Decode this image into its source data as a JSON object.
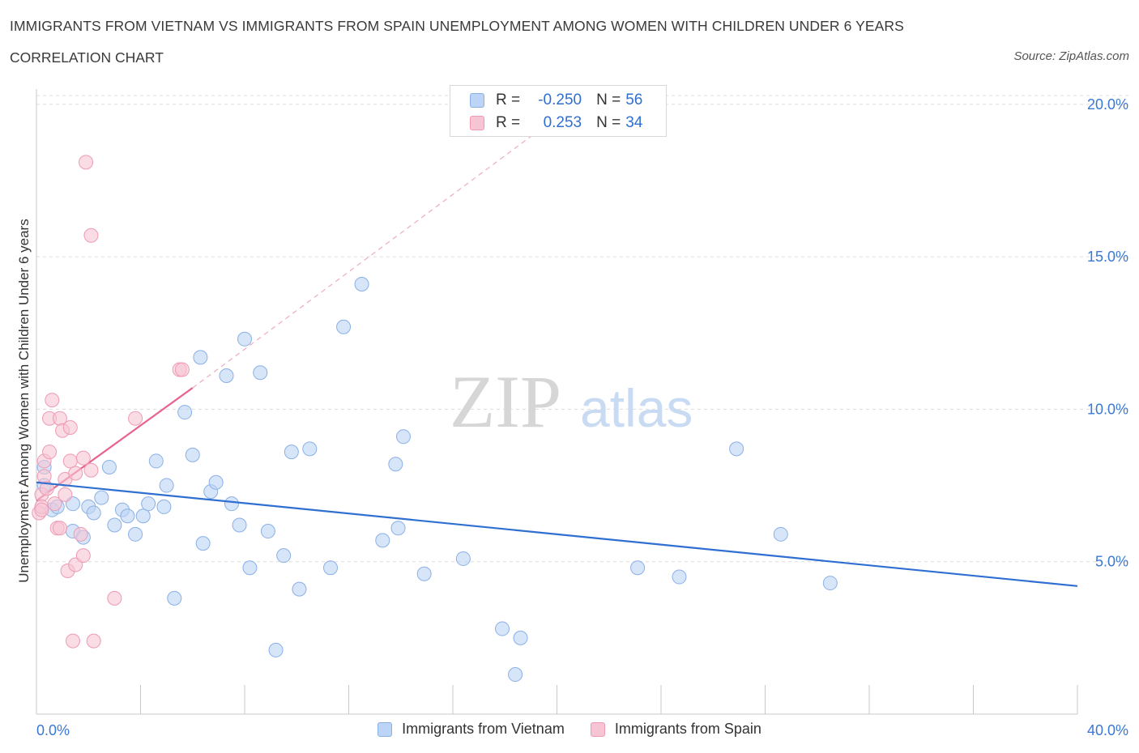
{
  "header": {
    "title": "IMMIGRANTS FROM VIETNAM VS IMMIGRANTS FROM SPAIN UNEMPLOYMENT AMONG WOMEN WITH CHILDREN UNDER 6 YEARS",
    "subtitle": "CORRELATION CHART",
    "source": "Source: ZipAtlas.com"
  },
  "watermark": {
    "zip": "ZIP",
    "atlas": "atlas"
  },
  "legend_top": {
    "rows": [
      {
        "r_label": "R =",
        "r_value": "-0.250",
        "n_label": "N =",
        "n_value": "56"
      },
      {
        "r_label": "R =",
        "r_value": "0.253",
        "n_label": "N =",
        "n_value": "34"
      }
    ]
  },
  "bottom_legend": {
    "vietnam": "Immigrants from Vietnam",
    "spain": "Immigrants from Spain"
  },
  "colors": {
    "vietnam_fill": "#bcd4f5",
    "vietnam_stroke": "#8ab0e6",
    "vietnam_line": "#2f6fd1",
    "spain_fill": "#f7c4d3",
    "spain_stroke": "#ee9ab5",
    "spain_line": "#e8638e",
    "axis_text": "#3a78d4",
    "grid": "#dcdcdc"
  },
  "chart_data": {
    "type": "scatter",
    "title": "IMMIGRANTS FROM VIETNAM VS IMMIGRANTS FROM SPAIN UNEMPLOYMENT AMONG WOMEN WITH CHILDREN UNDER 6 YEARS",
    "xlabel": "",
    "ylabel": "Unemployment Among Women with Children Under 6 years",
    "xlim": [
      0,
      40
    ],
    "ylim": [
      0,
      20.5
    ],
    "x_tick_labels": [
      "0.0%",
      "40.0%"
    ],
    "y_ticks": [
      5,
      10,
      15,
      20
    ],
    "y_tick_labels": [
      "5.0%",
      "10.0%",
      "15.0%",
      "20.0%"
    ],
    "series": [
      {
        "name": "Immigrants from Vietnam",
        "R": -0.25,
        "N": 56,
        "trend": {
          "x0": 0,
          "y0": 7.6,
          "x1": 40,
          "y1": 4.2
        },
        "points": [
          [
            0.3,
            8.1
          ],
          [
            0.3,
            7.5
          ],
          [
            0.6,
            6.7
          ],
          [
            0.8,
            6.8
          ],
          [
            1.4,
            6.0
          ],
          [
            1.8,
            5.8
          ],
          [
            1.4,
            6.9
          ],
          [
            2.0,
            6.8
          ],
          [
            2.2,
            6.6
          ],
          [
            2.5,
            7.1
          ],
          [
            2.8,
            8.1
          ],
          [
            3.0,
            6.2
          ],
          [
            3.3,
            6.7
          ],
          [
            3.5,
            6.5
          ],
          [
            3.8,
            5.9
          ],
          [
            4.1,
            6.5
          ],
          [
            4.3,
            6.9
          ],
          [
            4.6,
            8.3
          ],
          [
            4.9,
            6.8
          ],
          [
            5.0,
            7.5
          ],
          [
            5.3,
            3.8
          ],
          [
            5.7,
            9.9
          ],
          [
            6.0,
            8.5
          ],
          [
            6.3,
            11.7
          ],
          [
            6.4,
            5.6
          ],
          [
            6.7,
            7.3
          ],
          [
            6.9,
            7.6
          ],
          [
            7.3,
            11.1
          ],
          [
            7.5,
            6.9
          ],
          [
            7.8,
            6.2
          ],
          [
            8.0,
            12.3
          ],
          [
            8.2,
            4.8
          ],
          [
            8.6,
            11.2
          ],
          [
            8.9,
            6.0
          ],
          [
            9.2,
            2.1
          ],
          [
            9.5,
            5.2
          ],
          [
            9.8,
            8.6
          ],
          [
            10.1,
            4.1
          ],
          [
            10.5,
            8.7
          ],
          [
            11.3,
            4.8
          ],
          [
            11.8,
            12.7
          ],
          [
            12.5,
            14.1
          ],
          [
            13.3,
            5.7
          ],
          [
            13.8,
            8.2
          ],
          [
            13.9,
            6.1
          ],
          [
            14.1,
            9.1
          ],
          [
            14.9,
            4.6
          ],
          [
            16.4,
            5.1
          ],
          [
            17.9,
            2.8
          ],
          [
            18.6,
            2.5
          ],
          [
            18.4,
            1.3
          ],
          [
            23.1,
            4.8
          ],
          [
            24.7,
            4.5
          ],
          [
            26.9,
            8.7
          ],
          [
            28.6,
            5.9
          ],
          [
            30.5,
            4.3
          ]
        ]
      },
      {
        "name": "Immigrants from Spain",
        "R": 0.253,
        "N": 34,
        "trend": {
          "x0": 0,
          "y0": 7.0,
          "x1": 6.0,
          "y1": 10.7,
          "extend_to": [
            20.5,
            19.9
          ]
        },
        "points": [
          [
            0.1,
            6.6
          ],
          [
            0.2,
            7.2
          ],
          [
            0.2,
            6.8
          ],
          [
            0.3,
            8.3
          ],
          [
            0.3,
            7.8
          ],
          [
            0.4,
            7.4
          ],
          [
            0.5,
            8.6
          ],
          [
            0.5,
            9.7
          ],
          [
            0.6,
            10.3
          ],
          [
            0.8,
            6.1
          ],
          [
            0.9,
            6.1
          ],
          [
            0.9,
            9.7
          ],
          [
            1.0,
            9.3
          ],
          [
            1.1,
            7.7
          ],
          [
            1.1,
            7.2
          ],
          [
            1.2,
            4.7
          ],
          [
            1.3,
            9.4
          ],
          [
            1.3,
            8.3
          ],
          [
            1.4,
            2.4
          ],
          [
            1.5,
            7.9
          ],
          [
            1.5,
            4.9
          ],
          [
            1.7,
            5.9
          ],
          [
            1.8,
            5.2
          ],
          [
            1.8,
            8.4
          ],
          [
            2.1,
            8.0
          ],
          [
            1.9,
            18.1
          ],
          [
            2.1,
            15.7
          ],
          [
            2.2,
            2.4
          ],
          [
            3.0,
            3.8
          ],
          [
            3.8,
            9.7
          ],
          [
            5.5,
            11.3
          ],
          [
            5.6,
            11.3
          ],
          [
            0.2,
            6.7
          ],
          [
            0.7,
            6.9
          ]
        ]
      }
    ]
  }
}
